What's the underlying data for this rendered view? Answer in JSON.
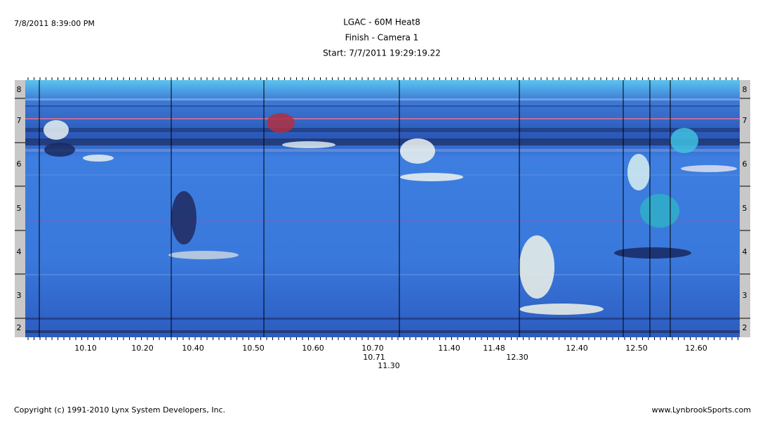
{
  "header": {
    "printed_at": "7/8/2011 8:39:00 PM",
    "title": "LGAC - 60M Heat8",
    "subtitle": "Finish - Camera 1",
    "start": "Start: 7/7/2011 19:29:19.22"
  },
  "lanes": [
    "8",
    "7",
    "6",
    "5",
    "4",
    "3",
    "2"
  ],
  "time_labels": [
    "10.10",
    "10.20",
    "10.40",
    "10.50",
    "10.60",
    "10.70",
    "10.71",
    "11.30",
    "11.40",
    "11.48",
    "12.30",
    "12.40",
    "12.50",
    "12.60"
  ],
  "footer": {
    "copyright": "Copyright (c) 1991-2010 Lynx System Developers, Inc.",
    "website": "www.LynbrookSports.com"
  }
}
